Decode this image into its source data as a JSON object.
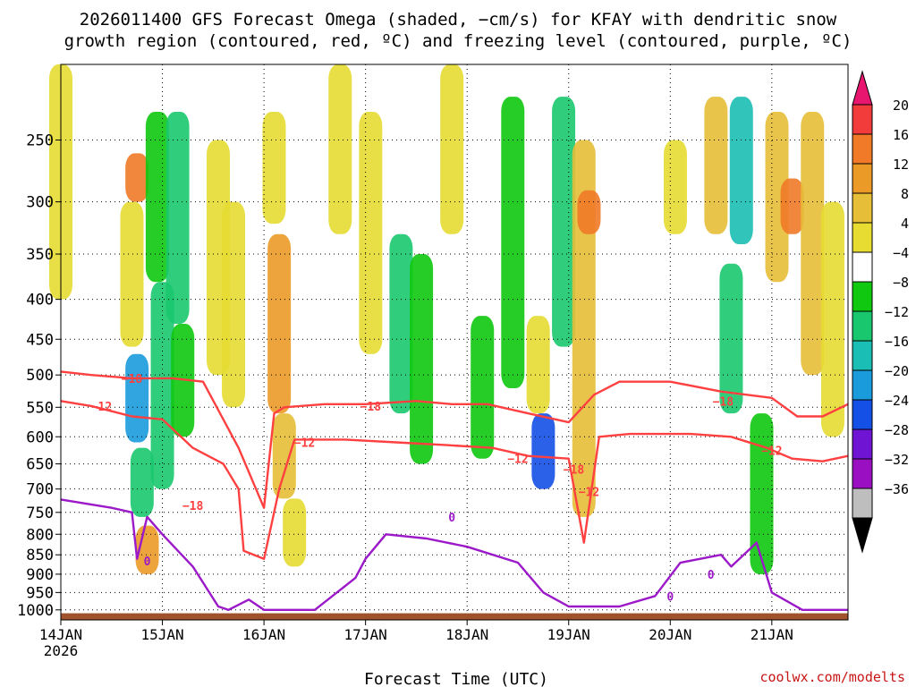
{
  "title": {
    "line1": "2026011400 GFS Forecast Omega (shaded, −cm/s) for KFAY with dendritic snow",
    "line2": "growth region (contoured, red, ºC) and freezing level (contoured, purple, ºC)"
  },
  "credit": "coolwx.com/modelts",
  "chart_data": {
    "type": "heatmap",
    "xlabel": "Forecast Time (UTC)",
    "ylabel": "",
    "y_scale": "log",
    "y_reversed": true,
    "ylim": [
      1030,
      200
    ],
    "xlim": [
      0,
      7.75
    ],
    "x_ticks": [
      {
        "x": 0,
        "label": "14JAN",
        "sublabel": "2026"
      },
      {
        "x": 1,
        "label": "15JAN"
      },
      {
        "x": 2,
        "label": "16JAN"
      },
      {
        "x": 3,
        "label": "17JAN"
      },
      {
        "x": 4,
        "label": "18JAN"
      },
      {
        "x": 5,
        "label": "19JAN"
      },
      {
        "x": 6,
        "label": "20JAN"
      },
      {
        "x": 7,
        "label": "21JAN"
      }
    ],
    "y_ticks": [
      250,
      300,
      350,
      400,
      450,
      500,
      550,
      600,
      650,
      700,
      750,
      800,
      850,
      900,
      950,
      1000
    ],
    "grid": true,
    "colorbar": {
      "levels": [
        -36,
        -32,
        -28,
        -24,
        -20,
        -16,
        -12,
        -8,
        -4,
        4,
        8,
        12,
        16,
        20
      ],
      "labels": [
        "20",
        "16",
        "12",
        "8",
        "4",
        "−4",
        "−8",
        "−12",
        "−16",
        "−20",
        "−24",
        "−28",
        "−32",
        "−36"
      ],
      "colors": [
        "#e8166e",
        "#f23c3c",
        "#f07a28",
        "#eb9a28",
        "#e6be37",
        "#e6dc32",
        "#ffffff",
        "#0fc80f",
        "#19c86e",
        "#1bbeb4",
        "#199bdc",
        "#1450e6",
        "#6e14d2",
        "#9b0fc3",
        "#bebebe",
        "#000000"
      ]
    },
    "omega_cells": [
      {
        "t": 0.0,
        "p0": 200,
        "p1": 400,
        "v": 5
      },
      {
        "t": 0.75,
        "p0": 260,
        "p1": 300,
        "v": 18
      },
      {
        "t": 0.7,
        "p0": 300,
        "p1": 460,
        "v": 6
      },
      {
        "t": 0.75,
        "p0": 470,
        "p1": 610,
        "v": -20
      },
      {
        "t": 0.8,
        "p0": 620,
        "p1": 760,
        "v": -9
      },
      {
        "t": 0.85,
        "p0": 780,
        "p1": 900,
        "v": 14
      },
      {
        "t": 0.95,
        "p0": 230,
        "p1": 380,
        "v": -6
      },
      {
        "t": 1.0,
        "p0": 380,
        "p1": 700,
        "v": -9
      },
      {
        "t": 1.15,
        "p0": 230,
        "p1": 430,
        "v": -12
      },
      {
        "t": 1.2,
        "p0": 430,
        "p1": 600,
        "v": -6
      },
      {
        "t": 1.55,
        "p0": 250,
        "p1": 500,
        "v": 5
      },
      {
        "t": 1.7,
        "p0": 300,
        "p1": 550,
        "v": 6
      },
      {
        "t": 2.1,
        "p0": 230,
        "p1": 320,
        "v": 7
      },
      {
        "t": 2.15,
        "p0": 330,
        "p1": 560,
        "v": 13
      },
      {
        "t": 2.2,
        "p0": 560,
        "p1": 720,
        "v": 9
      },
      {
        "t": 2.3,
        "p0": 720,
        "p1": 880,
        "v": 6
      },
      {
        "t": 2.75,
        "p0": 200,
        "p1": 330,
        "v": 5
      },
      {
        "t": 3.05,
        "p0": 230,
        "p1": 470,
        "v": 6
      },
      {
        "t": 3.35,
        "p0": 330,
        "p1": 560,
        "v": -11
      },
      {
        "t": 3.55,
        "p0": 350,
        "p1": 650,
        "v": -8
      },
      {
        "t": 3.85,
        "p0": 200,
        "p1": 330,
        "v": 6
      },
      {
        "t": 4.15,
        "p0": 420,
        "p1": 640,
        "v": -7
      },
      {
        "t": 4.45,
        "p0": 220,
        "p1": 520,
        "v": -6
      },
      {
        "t": 4.7,
        "p0": 420,
        "p1": 560,
        "v": 6
      },
      {
        "t": 4.75,
        "p0": 560,
        "p1": 700,
        "v": -22
      },
      {
        "t": 4.95,
        "p0": 220,
        "p1": 460,
        "v": -9
      },
      {
        "t": 5.15,
        "p0": 250,
        "p1": 760,
        "v": 10
      },
      {
        "t": 5.2,
        "p0": 290,
        "p1": 330,
        "v": 17
      },
      {
        "t": 6.05,
        "p0": 250,
        "p1": 330,
        "v": 5
      },
      {
        "t": 6.45,
        "p0": 220,
        "p1": 330,
        "v": 11
      },
      {
        "t": 6.6,
        "p0": 360,
        "p1": 560,
        "v": -12
      },
      {
        "t": 6.7,
        "p0": 220,
        "p1": 340,
        "v": -14
      },
      {
        "t": 6.9,
        "p0": 560,
        "p1": 900,
        "v": -7
      },
      {
        "t": 7.05,
        "p0": 230,
        "p1": 380,
        "v": 8
      },
      {
        "t": 7.2,
        "p0": 280,
        "p1": 330,
        "v": 18
      },
      {
        "t": 7.4,
        "p0": 230,
        "p1": 500,
        "v": 10
      },
      {
        "t": 7.6,
        "p0": 300,
        "p1": 600,
        "v": 6
      }
    ],
    "series": [
      {
        "name": "−18",
        "color": "#ff4040",
        "points": [
          [
            0,
            495
          ],
          [
            0.3,
            500
          ],
          [
            0.7,
            505
          ],
          [
            1.1,
            505
          ],
          [
            1.4,
            510
          ],
          [
            1.75,
            620
          ],
          [
            2.0,
            740
          ],
          [
            2.1,
            560
          ],
          [
            2.2,
            550
          ],
          [
            2.6,
            545
          ],
          [
            3.0,
            545
          ],
          [
            3.5,
            540
          ],
          [
            3.85,
            545
          ],
          [
            4.2,
            545
          ],
          [
            4.6,
            560
          ],
          [
            5.0,
            575
          ],
          [
            5.25,
            530
          ],
          [
            5.5,
            510
          ],
          [
            6.0,
            510
          ],
          [
            6.5,
            525
          ],
          [
            7.0,
            535
          ],
          [
            7.25,
            565
          ],
          [
            7.5,
            565
          ],
          [
            7.75,
            545
          ]
        ]
      },
      {
        "name": "−12",
        "color": "#ff4040",
        "points": [
          [
            0,
            540
          ],
          [
            0.3,
            548
          ],
          [
            0.7,
            565
          ],
          [
            1.0,
            570
          ],
          [
            1.3,
            620
          ],
          [
            1.6,
            650
          ],
          [
            1.75,
            700
          ],
          [
            1.8,
            840
          ],
          [
            2.0,
            860
          ],
          [
            2.15,
            700
          ],
          [
            2.3,
            605
          ],
          [
            2.8,
            605
          ],
          [
            3.3,
            610
          ],
          [
            3.8,
            615
          ],
          [
            4.25,
            620
          ],
          [
            4.6,
            635
          ],
          [
            5.0,
            640
          ],
          [
            5.15,
            820
          ],
          [
            5.3,
            600
          ],
          [
            5.6,
            595
          ],
          [
            6.2,
            595
          ],
          [
            6.6,
            600
          ],
          [
            6.95,
            620
          ],
          [
            7.2,
            640
          ],
          [
            7.5,
            645
          ],
          [
            7.75,
            635
          ]
        ]
      },
      {
        "name": "0",
        "color": "#9b19c8",
        "points": [
          [
            0,
            722
          ],
          [
            0.5,
            740
          ],
          [
            0.7,
            750
          ],
          [
            0.75,
            860
          ],
          [
            0.85,
            760
          ],
          [
            1.0,
            800
          ],
          [
            1.3,
            880
          ],
          [
            1.55,
            990
          ],
          [
            1.65,
            1000
          ],
          [
            1.85,
            970
          ],
          [
            2.0,
            1000
          ],
          [
            2.5,
            1000
          ],
          [
            2.9,
            910
          ],
          [
            3.0,
            860
          ],
          [
            3.2,
            800
          ],
          [
            3.6,
            810
          ],
          [
            4.0,
            830
          ],
          [
            4.5,
            870
          ],
          [
            4.75,
            950
          ],
          [
            5.0,
            990
          ],
          [
            5.5,
            990
          ],
          [
            5.85,
            960
          ],
          [
            6.1,
            870
          ],
          [
            6.5,
            850
          ],
          [
            6.6,
            880
          ],
          [
            6.85,
            820
          ],
          [
            7.0,
            950
          ],
          [
            7.3,
            1000
          ],
          [
            7.75,
            1000
          ]
        ]
      }
    ],
    "contour_labels": [
      {
        "text": "−18",
        "series": 0,
        "x": 0.7,
        "p": 505
      },
      {
        "text": "−18",
        "series": 0,
        "x": 1.3,
        "p": 735
      },
      {
        "text": "−18",
        "series": 0,
        "x": 3.05,
        "p": 548
      },
      {
        "text": "−18",
        "series": 0,
        "x": 5.05,
        "p": 660
      },
      {
        "text": "−18",
        "series": 0,
        "x": 6.52,
        "p": 540
      },
      {
        "text": "−12",
        "series": 1,
        "x": 0.4,
        "p": 548
      },
      {
        "text": "−12",
        "series": 1,
        "x": 2.4,
        "p": 610
      },
      {
        "text": "−12",
        "series": 1,
        "x": 4.5,
        "p": 640
      },
      {
        "text": "−12",
        "series": 1,
        "x": 5.2,
        "p": 705
      },
      {
        "text": "−12",
        "series": 1,
        "x": 7.0,
        "p": 625
      },
      {
        "text": "0",
        "series": 2,
        "x": 0.85,
        "p": 865
      },
      {
        "text": "0",
        "series": 2,
        "x": 3.85,
        "p": 760
      },
      {
        "text": "0",
        "series": 2,
        "x": 6.4,
        "p": 900
      },
      {
        "text": "0",
        "series": 2,
        "x": 6.0,
        "p": 960
      }
    ],
    "terrain_color": "#a0522d"
  }
}
